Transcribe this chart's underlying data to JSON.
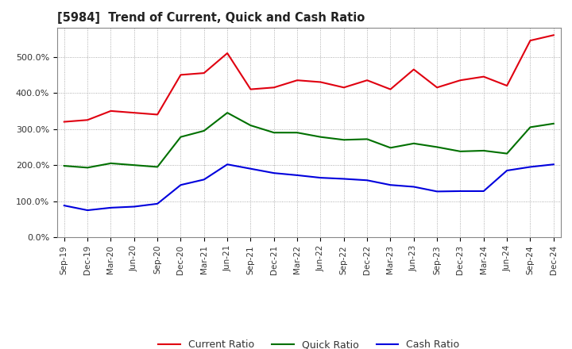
{
  "title": "[5984]  Trend of Current, Quick and Cash Ratio",
  "x_labels": [
    "Sep-19",
    "Dec-19",
    "Mar-20",
    "Jun-20",
    "Sep-20",
    "Dec-20",
    "Mar-21",
    "Jun-21",
    "Sep-21",
    "Dec-21",
    "Mar-22",
    "Jun-22",
    "Sep-22",
    "Dec-22",
    "Mar-23",
    "Jun-23",
    "Sep-23",
    "Dec-23",
    "Mar-24",
    "Jun-24",
    "Sep-24",
    "Dec-24"
  ],
  "current_ratio": [
    320,
    325,
    350,
    345,
    340,
    450,
    455,
    510,
    410,
    415,
    435,
    430,
    415,
    435,
    410,
    465,
    415,
    435,
    445,
    420,
    545,
    560
  ],
  "quick_ratio": [
    198,
    193,
    205,
    200,
    195,
    278,
    295,
    345,
    310,
    290,
    290,
    278,
    270,
    272,
    248,
    260,
    250,
    238,
    240,
    232,
    305,
    315
  ],
  "cash_ratio": [
    88,
    75,
    82,
    85,
    93,
    145,
    160,
    202,
    190,
    178,
    172,
    165,
    162,
    158,
    145,
    140,
    127,
    128,
    128,
    185,
    195,
    202
  ],
  "ylim": [
    0,
    580
  ],
  "yticks": [
    0,
    100,
    200,
    300,
    400,
    500
  ],
  "ytick_labels": [
    "0.0%",
    "100.0%",
    "200.0%",
    "300.0%",
    "400.0%",
    "500.0%"
  ],
  "current_color": "#e00010",
  "quick_color": "#007000",
  "cash_color": "#0000dd",
  "bg_color": "#ffffff",
  "plot_bg_color": "#ffffff",
  "grid_color": "#999999",
  "legend_labels": [
    "Current Ratio",
    "Quick Ratio",
    "Cash Ratio"
  ]
}
